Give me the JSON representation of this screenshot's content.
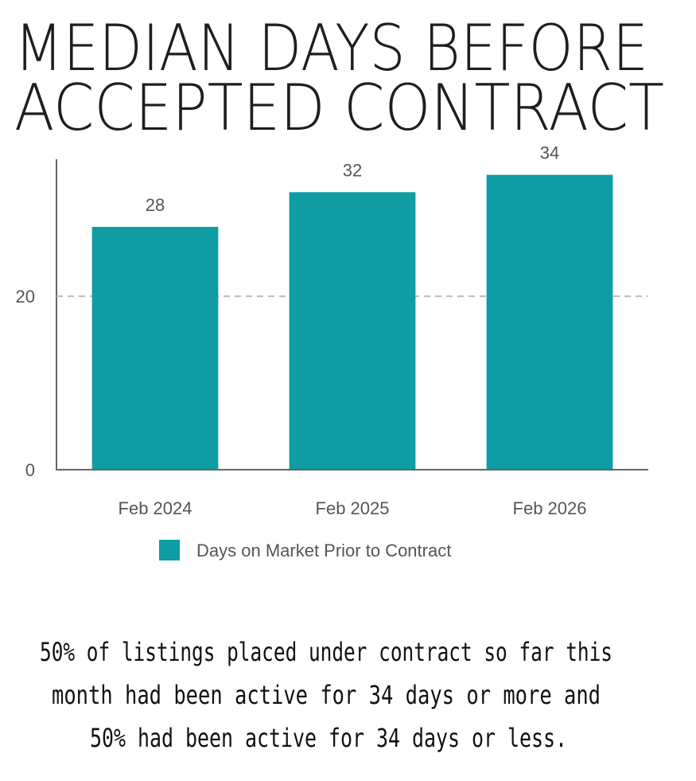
{
  "chart_data": {
    "type": "bar",
    "title": [
      "MEDIAN DAYS BEFORE",
      "ACCEPTED CONTRACT"
    ],
    "categories": [
      "Feb 2024",
      "Feb 2025",
      "Feb 2026"
    ],
    "series": [
      {
        "name": "Days on Market Prior to Contract",
        "color": "#0f9ca3",
        "values": [
          28,
          32,
          34
        ]
      }
    ],
    "ylim": [
      0,
      35.8
    ],
    "yticks": [
      0,
      20
    ],
    "grid": true,
    "annotation": [
      "50% of listings placed under contract so far this",
      "month had been active for 34 days or more and",
      "50% had been active for 34 days or less."
    ]
  }
}
